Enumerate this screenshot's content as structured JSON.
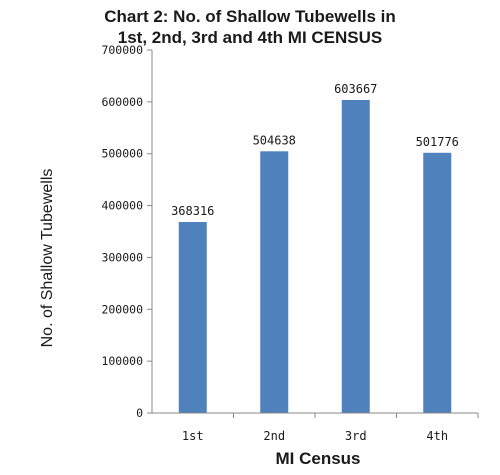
{
  "chart_data": {
    "type": "bar",
    "title_lines": [
      "Chart 2: No. of Shallow Tubewells in",
      "1st, 2nd, 3rd and 4th MI CENSUS"
    ],
    "xlabel": "MI Census",
    "ylabel": "No. of Shallow Tubewells",
    "categories": [
      "1st",
      "2nd",
      "3rd",
      "4th"
    ],
    "values": [
      368316,
      504638,
      603667,
      501776
    ],
    "data_labels": [
      "368316",
      "504638",
      "603667",
      "501776"
    ],
    "ylim": [
      0,
      700000
    ],
    "yticks": [
      0,
      100000,
      200000,
      300000,
      400000,
      500000,
      600000,
      700000
    ],
    "ytick_labels": [
      "0",
      "100000",
      "200000",
      "300000",
      "400000",
      "500000",
      "600000",
      "700000"
    ],
    "bar_color": "#4f81bd",
    "grid": false,
    "legend": "none"
  }
}
